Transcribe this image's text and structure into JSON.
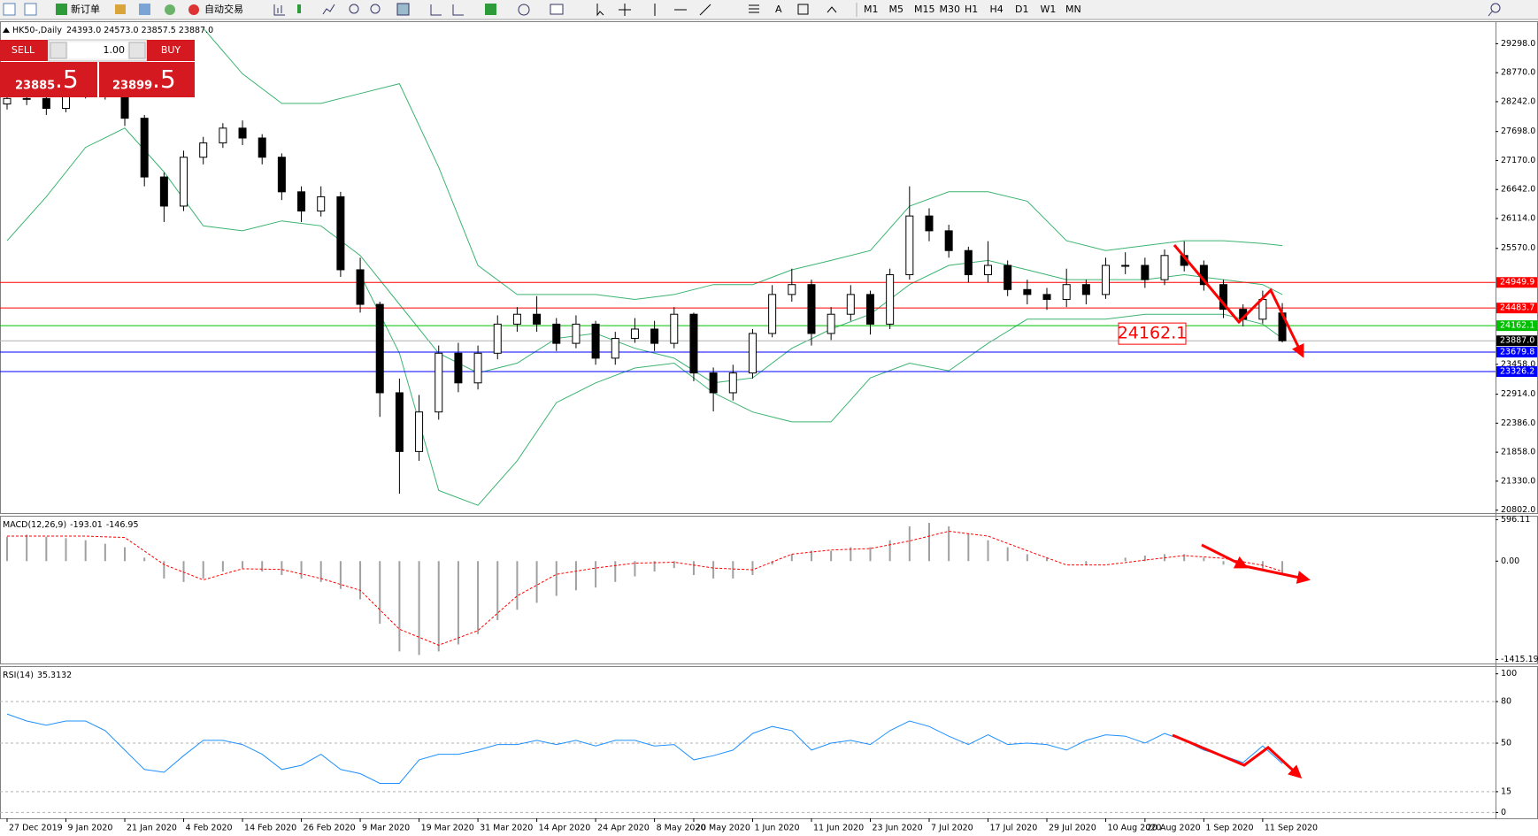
{
  "toolbar": {
    "new_order": "新订单",
    "auto_trading": "自动交易",
    "timeframes": [
      "M1",
      "M5",
      "M15",
      "M30",
      "H1",
      "H4",
      "D1",
      "W1",
      "MN"
    ]
  },
  "trade_panel": {
    "sell": "SELL",
    "lot": "1.00",
    "buy": "BUY",
    "sell_price_main": "23885",
    "sell_price_frac": ".5",
    "buy_price_main": "23899",
    "buy_price_frac": ".5"
  },
  "chart_data": [
    {
      "type": "candlestick",
      "title": "HK50-,Daily",
      "ohlc_label": "24393.0 24573.0 23857.5 23887.0",
      "categories": [
        "27 Dec 2019",
        null,
        null,
        "9 Jan 2020",
        null,
        null,
        "21 Jan 2020",
        null,
        null,
        "4 Feb 2020",
        null,
        null,
        "14 Feb 2020",
        null,
        null,
        "26 Feb 2020",
        null,
        null,
        "9 Mar 2020",
        null,
        null,
        "19 Mar 2020",
        null,
        null,
        "31 Mar 2020",
        null,
        null,
        "14 Apr 2020",
        null,
        null,
        "24 Apr 2020",
        null,
        null,
        "8 May 2020",
        null,
        "20 May 2020",
        null,
        null,
        "1 Jun 2020",
        null,
        null,
        "11 Jun 2020",
        null,
        null,
        "23 Jun 2020",
        null,
        null,
        "7 Jul 2020",
        null,
        null,
        "17 Jul 2020",
        null,
        null,
        "29 Jul 2020",
        null,
        null,
        "10 Aug 2020",
        null,
        "20 Aug 2020",
        null,
        null,
        "1 Sep 2020",
        null,
        null,
        "11 Sep 2020",
        null
      ],
      "open": [
        28200,
        28300,
        28300,
        28120,
        28390,
        28480,
        28390,
        27940,
        26870,
        26340,
        27230,
        27490,
        27760,
        27580,
        27230,
        26600,
        26250,
        26510,
        25180,
        24550,
        22940,
        21870,
        22590,
        23660,
        23120,
        23660,
        24190,
        24370,
        24190,
        23840,
        24190,
        23570,
        23930,
        24100,
        23840,
        24370,
        23300,
        22940,
        23300,
        24020,
        24730,
        24910,
        24020,
        24370,
        24730,
        24190,
        25090,
        26160,
        25890,
        25530,
        25090,
        25260,
        24820,
        24730,
        24640,
        24910,
        24730,
        25260,
        25260,
        25000,
        25440,
        25260,
        24910,
        24460,
        24280,
        24393
      ],
      "high": [
        28420,
        28450,
        28380,
        28500,
        28600,
        28560,
        28450,
        28000,
        26950,
        27350,
        27600,
        27850,
        27900,
        27650,
        27300,
        26700,
        26700,
        26600,
        25400,
        24600,
        23200,
        22900,
        23800,
        23850,
        23800,
        24350,
        24500,
        24700,
        24300,
        24350,
        24250,
        24050,
        24300,
        24250,
        24500,
        24400,
        23400,
        23450,
        24100,
        24900,
        25200,
        25000,
        24500,
        24900,
        24800,
        25200,
        26700,
        26300,
        26000,
        25600,
        25700,
        25350,
        25000,
        24850,
        25200,
        25000,
        25400,
        25500,
        25400,
        25550,
        25700,
        25350,
        25000,
        24550,
        24800,
        24573
      ],
      "low": [
        28100,
        28180,
        28000,
        28050,
        28300,
        28280,
        27800,
        26700,
        26050,
        26250,
        27100,
        27400,
        27450,
        27100,
        26450,
        26050,
        26150,
        25050,
        24400,
        22500,
        21100,
        21700,
        22450,
        22950,
        23000,
        23550,
        24050,
        24050,
        23700,
        23750,
        23450,
        23450,
        23850,
        23700,
        23750,
        23150,
        22600,
        22800,
        23200,
        23950,
        24600,
        23800,
        23900,
        24250,
        24000,
        24100,
        25000,
        25700,
        25400,
        24950,
        24950,
        24700,
        24550,
        24450,
        24500,
        24550,
        24650,
        25100,
        24850,
        24900,
        25150,
        24800,
        24300,
        24150,
        24200,
        23857.5
      ],
      "close": [
        28300,
        28300,
        28120,
        28390,
        28480,
        28390,
        27940,
        26870,
        26340,
        27230,
        27490,
        27760,
        27580,
        27230,
        26600,
        26250,
        26510,
        25180,
        24550,
        22940,
        21870,
        22590,
        23660,
        23120,
        23660,
        24190,
        24370,
        24190,
        23840,
        24190,
        23570,
        23930,
        24100,
        23840,
        24370,
        23300,
        22940,
        23300,
        24020,
        24730,
        24910,
        24020,
        24370,
        24730,
        24190,
        25090,
        26160,
        25890,
        25530,
        25090,
        25260,
        24820,
        24730,
        24640,
        24910,
        24730,
        25260,
        25260,
        25000,
        25440,
        25260,
        24910,
        24460,
        24280,
        24640,
        23887
      ],
      "up_color": "#ffffff",
      "down_color": "#000000",
      "bollinger": {
        "color": "#3cb371",
        "x": [
          0,
          2,
          4,
          6,
          8,
          10,
          12,
          14,
          16,
          18,
          20,
          22,
          24,
          26,
          28,
          30,
          32,
          34,
          36,
          38,
          40,
          42,
          44,
          46,
          48,
          50,
          52,
          54,
          56,
          58,
          60,
          62,
          64,
          65
        ],
        "upper": [
          null,
          null,
          null,
          null,
          null,
          29580,
          28750,
          28210,
          28210,
          28390,
          28570,
          27050,
          25260,
          24730,
          24730,
          24730,
          24640,
          24730,
          24910,
          24910,
          25180,
          25350,
          25530,
          26340,
          26600,
          26600,
          26430,
          25710,
          25530,
          25620,
          25710,
          25710,
          25660,
          25620
        ],
        "middle": [
          25710,
          26510,
          27410,
          27760,
          26960,
          25980,
          25890,
          26070,
          25980,
          25440,
          24550,
          23660,
          23300,
          23480,
          23930,
          24020,
          23750,
          23570,
          23120,
          23210,
          23750,
          24100,
          24370,
          24910,
          25260,
          25350,
          25180,
          25000,
          25000,
          25000,
          25090,
          25000,
          24910,
          24730
        ],
        "lower": [
          null,
          null,
          null,
          null,
          null,
          null,
          null,
          null,
          null,
          25090,
          23660,
          21160,
          20890,
          21700,
          22760,
          23120,
          23390,
          23480,
          22940,
          22590,
          22410,
          22410,
          23210,
          23480,
          23340,
          23840,
          24280,
          24280,
          24280,
          24370,
          24370,
          24370,
          24190,
          23930
        ]
      },
      "levels": [
        {
          "value": 24949.9,
          "color": "#ff0000"
        },
        {
          "value": 24483.7,
          "color": "#ff0000"
        },
        {
          "value": 24162.1,
          "color": "#00c000"
        },
        {
          "value": 23679.8,
          "color": "#0000ff"
        },
        {
          "value": 23326.2,
          "color": "#0000ff"
        },
        {
          "value": 23887,
          "label": "23887.0",
          "color": "#000000"
        }
      ],
      "ylim": [
        20748,
        29691
      ],
      "yticks": [
        {
          "value": 29298,
          "label": "29298.0"
        },
        {
          "value": 28770,
          "label": "28770.0"
        },
        {
          "value": 28242,
          "label": "28242.0"
        },
        {
          "value": 27698,
          "label": "27698.0"
        },
        {
          "value": 27170,
          "label": "27170.0"
        },
        {
          "value": 26642,
          "label": "26642.0"
        },
        {
          "value": 26114,
          "label": "26114.0"
        },
        {
          "value": 25570,
          "label": "25570.0"
        },
        {
          "value": 23458,
          "label": "23458.0"
        },
        {
          "value": 22914,
          "label": "22914.0"
        },
        {
          "value": 22386,
          "label": "22386.0"
        },
        {
          "value": 21858,
          "label": "21858.0"
        },
        {
          "value": 21330,
          "label": "21330.0"
        },
        {
          "value": 20802,
          "label": "20802.0"
        }
      ]
    },
    {
      "type": "histogram",
      "title": "MACD(12,26,9)",
      "color": "#a0a0a0",
      "values": [
        350,
        380,
        350,
        330,
        300,
        250,
        200,
        50,
        -250,
        -300,
        -250,
        -150,
        -100,
        -150,
        -200,
        -250,
        -300,
        -400,
        -550,
        -900,
        -1300,
        -1350,
        -1300,
        -1200,
        -1050,
        -850,
        -700,
        -600,
        -500,
        -420,
        -380,
        -300,
        -220,
        -150,
        -100,
        -200,
        -250,
        -250,
        -200,
        -50,
        100,
        150,
        150,
        200,
        200,
        300,
        500,
        550,
        500,
        400,
        300,
        200,
        100,
        50,
        0,
        -50,
        0,
        50,
        80,
        100,
        100,
        50,
        -50,
        -100,
        -120,
        -193.01
      ],
      "signal": {
        "color": "#ff0000",
        "x": [
          0,
          2,
          4,
          6,
          8,
          10,
          12,
          14,
          16,
          18,
          20,
          22,
          24,
          26,
          28,
          30,
          32,
          34,
          36,
          38,
          40,
          42,
          44,
          46,
          48,
          50,
          52,
          54,
          56,
          58,
          60,
          62,
          64,
          65
        ],
        "values": [
          360,
          360,
          360,
          340,
          -50,
          -270,
          -110,
          -120,
          -250,
          -420,
          -980,
          -1210,
          -1000,
          -500,
          -190,
          -100,
          -30,
          -15,
          -100,
          -125,
          100,
          160,
          180,
          290,
          430,
          360,
          150,
          -55,
          -55,
          15,
          80,
          40,
          -60,
          -146.95
        ]
      },
      "ylim": [
        -1473,
        640
      ],
      "yticks": [
        596.11,
        {
          "value": 0,
          "label": "0.00"
        },
        -1415.19
      ]
    },
    {
      "type": "line",
      "title": "RSI(14)",
      "color": "#1e90ff",
      "grid": true,
      "values": [
        71,
        66,
        63,
        66,
        66,
        59,
        45,
        31,
        29,
        41,
        52,
        52,
        49,
        42,
        31,
        34,
        42,
        31,
        28,
        21,
        21,
        38,
        42,
        42,
        45,
        49,
        49,
        52,
        49,
        52,
        48,
        52,
        52,
        48,
        49,
        38,
        41,
        45,
        57,
        62,
        59,
        45,
        50,
        52,
        49,
        59,
        66,
        62,
        55,
        49,
        56,
        49,
        50,
        49,
        45,
        52,
        56,
        55,
        50,
        57,
        52,
        45,
        41,
        36,
        48,
        35.3132
      ],
      "ylim": [
        -4.2,
        104.9
      ],
      "yticks": [
        100,
        80,
        50,
        15,
        0
      ]
    }
  ]
}
